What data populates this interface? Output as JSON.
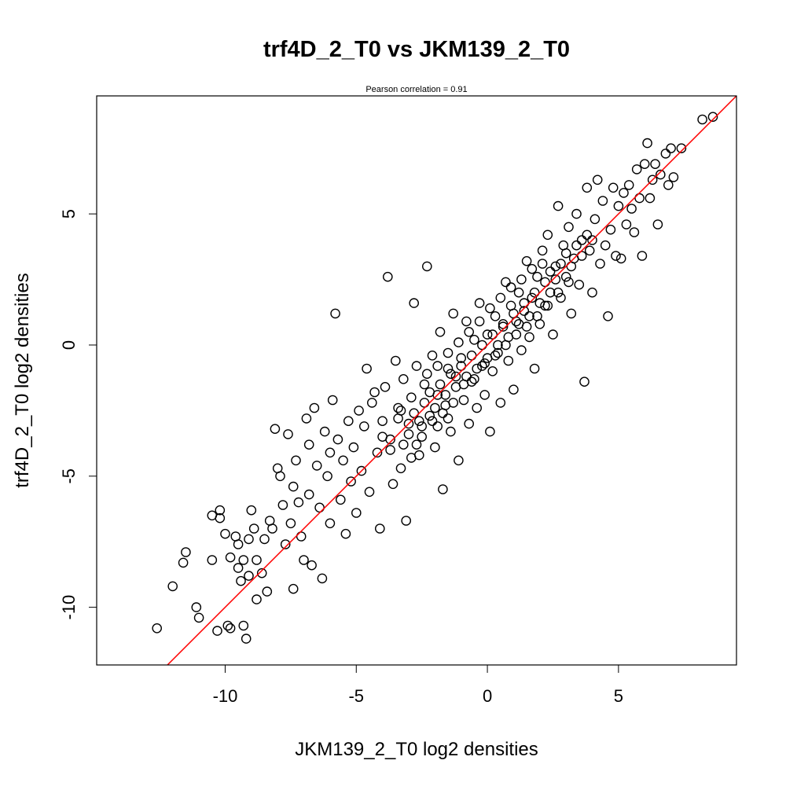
{
  "chart_data": {
    "type": "scatter",
    "title": "trf4D_2_T0 vs JKM139_2_T0",
    "subtitle": "Pearson correlation =  0.91",
    "xlabel": "JKM139_2_T0 log2 densities",
    "ylabel": "trf4D_2_T0 log2 densities",
    "xlim": [
      -14.9,
      9.5
    ],
    "ylim": [
      -12.2,
      9.5
    ],
    "xticks": [
      -10,
      -5,
      0,
      5
    ],
    "yticks": [
      -10,
      -5,
      0,
      5
    ],
    "xtick_labels": [
      "-10",
      "-5",
      "0",
      "5"
    ],
    "ytick_labels": [
      "-10",
      "-5",
      "0",
      "5"
    ],
    "grid": false,
    "marker": "open-circle",
    "colors": {
      "points": "#000000",
      "fit_line": "#ff0000"
    },
    "fit_line": {
      "intercept": 0.0,
      "slope": 1.0
    },
    "points": [
      [
        -12.6,
        -10.8
      ],
      [
        -12.0,
        -9.2
      ],
      [
        -11.6,
        -8.3
      ],
      [
        -11.5,
        -7.9
      ],
      [
        -11.1,
        -10.0
      ],
      [
        -11.0,
        -10.4
      ],
      [
        -10.5,
        -6.5
      ],
      [
        -10.5,
        -8.2
      ],
      [
        -10.3,
        -10.9
      ],
      [
        -10.2,
        -6.6
      ],
      [
        -10.2,
        -6.3
      ],
      [
        -10.0,
        -7.2
      ],
      [
        -9.9,
        -10.7
      ],
      [
        -9.8,
        -8.1
      ],
      [
        -9.8,
        -10.8
      ],
      [
        -9.6,
        -7.3
      ],
      [
        -9.5,
        -7.6
      ],
      [
        -9.4,
        -9.0
      ],
      [
        -9.5,
        -8.5
      ],
      [
        -9.3,
        -8.2
      ],
      [
        -9.3,
        -10.7
      ],
      [
        -9.2,
        -11.2
      ],
      [
        -9.1,
        -7.4
      ],
      [
        -9.1,
        -8.8
      ],
      [
        -9.0,
        -6.3
      ],
      [
        -8.9,
        -7.0
      ],
      [
        -8.8,
        -8.2
      ],
      [
        -8.8,
        -9.7
      ],
      [
        -8.6,
        -8.7
      ],
      [
        -8.5,
        -7.4
      ],
      [
        -8.4,
        -9.4
      ],
      [
        -8.3,
        -6.7
      ],
      [
        -8.2,
        -7.0
      ],
      [
        -8.1,
        -3.2
      ],
      [
        -8.0,
        -4.7
      ],
      [
        -7.9,
        -5.0
      ],
      [
        -7.8,
        -6.1
      ],
      [
        -7.7,
        -7.6
      ],
      [
        -7.6,
        -3.4
      ],
      [
        -7.5,
        -6.8
      ],
      [
        -7.4,
        -5.4
      ],
      [
        -7.4,
        -9.3
      ],
      [
        -7.3,
        -4.4
      ],
      [
        -7.2,
        -6.0
      ],
      [
        -7.1,
        -7.3
      ],
      [
        -7.0,
        -8.2
      ],
      [
        -6.9,
        -2.8
      ],
      [
        -6.8,
        -3.8
      ],
      [
        -6.8,
        -5.7
      ],
      [
        -6.7,
        -8.4
      ],
      [
        -6.6,
        -2.4
      ],
      [
        -6.5,
        -4.6
      ],
      [
        -6.4,
        -6.2
      ],
      [
        -6.3,
        -8.9
      ],
      [
        -6.2,
        -3.3
      ],
      [
        -6.1,
        -5.0
      ],
      [
        -6.0,
        -4.1
      ],
      [
        -6.0,
        -6.8
      ],
      [
        -5.9,
        -2.1
      ],
      [
        -5.8,
        1.2
      ],
      [
        -5.7,
        -3.6
      ],
      [
        -5.6,
        -5.9
      ],
      [
        -5.5,
        -4.4
      ],
      [
        -5.4,
        -7.2
      ],
      [
        -5.3,
        -2.9
      ],
      [
        -5.2,
        -5.2
      ],
      [
        -5.1,
        -3.9
      ],
      [
        -5.0,
        -6.4
      ],
      [
        -4.9,
        -2.5
      ],
      [
        -4.8,
        -4.8
      ],
      [
        -4.7,
        -3.1
      ],
      [
        -4.6,
        -0.9
      ],
      [
        -4.5,
        -5.6
      ],
      [
        -4.4,
        -2.2
      ],
      [
        -4.3,
        -1.8
      ],
      [
        -4.2,
        -4.1
      ],
      [
        -4.1,
        -7.0
      ],
      [
        -4.0,
        -2.9
      ],
      [
        -3.9,
        -1.6
      ],
      [
        -3.8,
        2.6
      ],
      [
        -3.7,
        -3.6
      ],
      [
        -3.6,
        -5.3
      ],
      [
        -3.5,
        -0.6
      ],
      [
        -3.4,
        -2.4
      ],
      [
        -3.3,
        -4.7
      ],
      [
        -3.2,
        -1.3
      ],
      [
        -3.1,
        -6.7
      ],
      [
        -3.0,
        -3.0
      ],
      [
        -2.9,
        -2.0
      ],
      [
        -2.8,
        1.6
      ],
      [
        -2.7,
        -0.8
      ],
      [
        -2.6,
        -4.2
      ],
      [
        -2.5,
        -3.5
      ],
      [
        -2.4,
        -1.5
      ],
      [
        -2.3,
        3.0
      ],
      [
        -2.2,
        -2.7
      ],
      [
        -2.1,
        -0.4
      ],
      [
        -2.0,
        -3.9
      ],
      [
        -1.9,
        -1.9
      ],
      [
        -1.8,
        0.5
      ],
      [
        -1.7,
        -5.5
      ],
      [
        -1.6,
        -2.3
      ],
      [
        -1.5,
        -0.9
      ],
      [
        -1.4,
        -3.3
      ],
      [
        -1.3,
        1.2
      ],
      [
        -1.2,
        -1.2
      ],
      [
        -1.1,
        -4.4
      ],
      [
        -1.0,
        -0.5
      ],
      [
        -0.9,
        -2.1
      ],
      [
        -0.8,
        0.9
      ],
      [
        -0.7,
        -3.0
      ],
      [
        -0.6,
        -1.4
      ],
      [
        -0.5,
        0.2
      ],
      [
        -0.4,
        -2.4
      ],
      [
        -0.3,
        1.6
      ],
      [
        -0.2,
        -0.8
      ],
      [
        -0.1,
        -1.9
      ],
      [
        0.0,
        0.4
      ],
      [
        0.1,
        -3.3
      ],
      [
        0.2,
        -1.0
      ],
      [
        0.3,
        1.1
      ],
      [
        0.4,
        -0.3
      ],
      [
        0.5,
        -2.2
      ],
      [
        0.6,
        0.7
      ],
      [
        0.7,
        2.4
      ],
      [
        0.8,
        -0.6
      ],
      [
        0.9,
        1.5
      ],
      [
        1.0,
        -1.7
      ],
      [
        1.1,
        0.9
      ],
      [
        1.2,
        2.0
      ],
      [
        1.3,
        -0.2
      ],
      [
        1.4,
        1.3
      ],
      [
        1.5,
        3.2
      ],
      [
        1.6,
        0.3
      ],
      [
        1.7,
        1.8
      ],
      [
        1.8,
        -0.9
      ],
      [
        1.9,
        2.6
      ],
      [
        2.0,
        0.8
      ],
      [
        2.1,
        3.6
      ],
      [
        2.2,
        1.5
      ],
      [
        2.3,
        4.2
      ],
      [
        2.4,
        2.0
      ],
      [
        2.5,
        0.4
      ],
      [
        2.6,
        3.0
      ],
      [
        2.7,
        5.3
      ],
      [
        2.8,
        1.8
      ],
      [
        2.9,
        3.8
      ],
      [
        3.0,
        2.6
      ],
      [
        3.1,
        4.5
      ],
      [
        3.2,
        1.2
      ],
      [
        3.3,
        3.3
      ],
      [
        3.4,
        5.0
      ],
      [
        3.5,
        2.3
      ],
      [
        3.6,
        4.0
      ],
      [
        3.7,
        -1.4
      ],
      [
        3.8,
        6.0
      ],
      [
        3.9,
        3.6
      ],
      [
        4.0,
        2.0
      ],
      [
        4.1,
        4.8
      ],
      [
        4.2,
        6.3
      ],
      [
        4.3,
        3.1
      ],
      [
        4.4,
        5.5
      ],
      [
        4.5,
        3.8
      ],
      [
        4.6,
        1.1
      ],
      [
        4.7,
        4.4
      ],
      [
        4.8,
        6.0
      ],
      [
        4.9,
        3.4
      ],
      [
        5.0,
        5.3
      ],
      [
        5.1,
        3.3
      ],
      [
        5.2,
        5.8
      ],
      [
        5.3,
        4.6
      ],
      [
        5.4,
        6.1
      ],
      [
        5.5,
        5.2
      ],
      [
        5.6,
        4.3
      ],
      [
        5.7,
        6.7
      ],
      [
        5.8,
        5.6
      ],
      [
        5.9,
        3.4
      ],
      [
        6.0,
        6.9
      ],
      [
        6.1,
        7.7
      ],
      [
        6.2,
        5.6
      ],
      [
        6.3,
        6.3
      ],
      [
        6.4,
        6.9
      ],
      [
        6.5,
        4.6
      ],
      [
        6.6,
        6.5
      ],
      [
        6.8,
        7.3
      ],
      [
        6.9,
        6.1
      ],
      [
        7.0,
        7.5
      ],
      [
        7.1,
        6.4
      ],
      [
        7.4,
        7.5
      ],
      [
        8.2,
        8.6
      ],
      [
        8.6,
        8.7
      ],
      [
        -3.0,
        -3.4
      ],
      [
        -2.8,
        -2.6
      ],
      [
        -2.6,
        -2.9
      ],
      [
        -2.4,
        -2.2
      ],
      [
        -2.2,
        -1.8
      ],
      [
        -2.0,
        -2.4
      ],
      [
        -1.8,
        -1.5
      ],
      [
        -1.6,
        -1.9
      ],
      [
        -1.4,
        -1.1
      ],
      [
        -1.2,
        -1.6
      ],
      [
        -1.0,
        -0.8
      ],
      [
        -0.8,
        -1.2
      ],
      [
        -0.6,
        -0.4
      ],
      [
        -0.4,
        -0.9
      ],
      [
        -0.2,
        0.0
      ],
      [
        0.0,
        -0.5
      ],
      [
        0.2,
        0.4
      ],
      [
        0.4,
        0.0
      ],
      [
        0.6,
        0.8
      ],
      [
        0.8,
        0.3
      ],
      [
        1.0,
        1.2
      ],
      [
        1.2,
        0.8
      ],
      [
        1.4,
        1.6
      ],
      [
        1.6,
        1.1
      ],
      [
        1.8,
        2.0
      ],
      [
        2.0,
        1.6
      ],
      [
        2.2,
        2.4
      ],
      [
        2.4,
        2.8
      ],
      [
        2.6,
        2.5
      ],
      [
        2.8,
        3.1
      ],
      [
        3.0,
        3.5
      ],
      [
        3.2,
        3.0
      ],
      [
        3.4,
        3.8
      ],
      [
        3.6,
        3.4
      ],
      [
        3.8,
        4.2
      ],
      [
        4.0,
        4.0
      ],
      [
        -3.4,
        -2.8
      ],
      [
        -3.2,
        -3.8
      ],
      [
        -2.9,
        -4.3
      ],
      [
        -2.5,
        -3.1
      ],
      [
        -2.1,
        -2.9
      ],
      [
        -1.7,
        -2.6
      ],
      [
        -1.3,
        -2.2
      ],
      [
        -0.9,
        -1.5
      ],
      [
        -0.5,
        -1.3
      ],
      [
        -0.1,
        -0.7
      ],
      [
        0.3,
        -0.4
      ],
      [
        0.7,
        0.0
      ],
      [
        1.1,
        0.4
      ],
      [
        1.5,
        0.7
      ],
      [
        1.9,
        1.1
      ],
      [
        2.3,
        1.5
      ],
      [
        2.7,
        2.0
      ],
      [
        3.1,
        2.4
      ],
      [
        -2.3,
        -1.1
      ],
      [
        -1.9,
        -0.8
      ],
      [
        -1.5,
        -0.3
      ],
      [
        -1.1,
        0.1
      ],
      [
        -0.7,
        0.5
      ],
      [
        -0.3,
        0.9
      ],
      [
        0.1,
        1.4
      ],
      [
        0.5,
        1.8
      ],
      [
        0.9,
        2.2
      ],
      [
        1.3,
        2.5
      ],
      [
        1.7,
        2.9
      ],
      [
        2.1,
        3.1
      ],
      [
        -4.0,
        -3.5
      ],
      [
        -3.7,
        -4.0
      ],
      [
        -3.3,
        -2.5
      ],
      [
        -2.7,
        -3.8
      ],
      [
        -1.9,
        -3.1
      ],
      [
        -1.5,
        -2.8
      ]
    ]
  }
}
